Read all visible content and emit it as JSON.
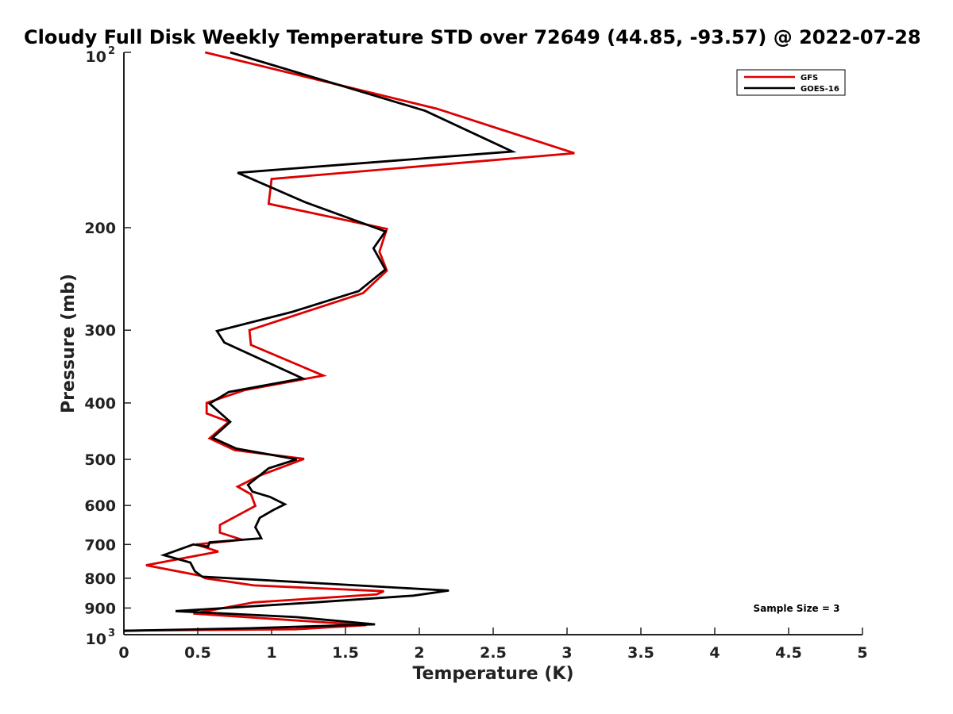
{
  "chart_data": {
    "type": "line",
    "title": "Cloudy Full Disk Weekly Temperature STD over 72649 (44.85, -93.57) @ 2022-07-28",
    "xlabel": "Temperature (K)",
    "ylabel": "Pressure (mb)",
    "xlim": [
      0,
      5
    ],
    "ylim": [
      100,
      1000
    ],
    "y_scale": "log",
    "y_reversed": true,
    "grid": false,
    "legend_position": "top-right",
    "annotation": "Sample Size = 3",
    "x_ticks": [
      {
        "value": 0,
        "label": "0"
      },
      {
        "value": 0.5,
        "label": "0.5"
      },
      {
        "value": 1,
        "label": "1"
      },
      {
        "value": 1.5,
        "label": "1.5"
      },
      {
        "value": 2,
        "label": "2"
      },
      {
        "value": 2.5,
        "label": "2.5"
      },
      {
        "value": 3,
        "label": "3"
      },
      {
        "value": 3.5,
        "label": "3.5"
      },
      {
        "value": 4,
        "label": "4"
      },
      {
        "value": 4.5,
        "label": "4.5"
      },
      {
        "value": 5,
        "label": "5"
      }
    ],
    "y_ticks": [
      {
        "value": 100,
        "label": "10",
        "exponent": "2"
      },
      {
        "value": 200,
        "label": "200"
      },
      {
        "value": 300,
        "label": "300"
      },
      {
        "value": 400,
        "label": "400"
      },
      {
        "value": 500,
        "label": "500"
      },
      {
        "value": 600,
        "label": "600"
      },
      {
        "value": 700,
        "label": "700"
      },
      {
        "value": 800,
        "label": "800"
      },
      {
        "value": 900,
        "label": "900"
      },
      {
        "value": 1000,
        "label": "10",
        "exponent": "3"
      }
    ],
    "series": [
      {
        "name": "GFS",
        "color": "#dd0000",
        "points": [
          [
            0.55,
            100
          ],
          [
            2.12,
            125
          ],
          [
            3.05,
            149
          ],
          [
            1.0,
            165
          ],
          [
            0.98,
            182
          ],
          [
            1.78,
            201
          ],
          [
            1.73,
            220
          ],
          [
            1.78,
            237
          ],
          [
            1.62,
            259
          ],
          [
            0.85,
            300
          ],
          [
            0.86,
            318
          ],
          [
            1.35,
            359
          ],
          [
            0.82,
            380
          ],
          [
            0.56,
            400
          ],
          [
            0.56,
            417
          ],
          [
            0.71,
            431
          ],
          [
            0.58,
            460
          ],
          [
            0.75,
            482
          ],
          [
            1.22,
            499
          ],
          [
            0.92,
            533
          ],
          [
            0.77,
            557
          ],
          [
            0.86,
            574
          ],
          [
            0.89,
            601
          ],
          [
            0.65,
            648
          ],
          [
            0.65,
            668
          ],
          [
            0.8,
            687
          ],
          [
            0.49,
            700
          ],
          [
            0.64,
            720
          ],
          [
            0.15,
            760
          ],
          [
            0.52,
            792
          ],
          [
            0.55,
            800
          ],
          [
            0.88,
            823
          ],
          [
            1.76,
            842
          ],
          [
            1.71,
            853
          ],
          [
            0.88,
            880
          ],
          [
            0.47,
            920
          ],
          [
            1.64,
            963
          ],
          [
            1.16,
            979
          ],
          [
            0.0,
            984
          ]
        ]
      },
      {
        "name": "GOES-16",
        "color": "#000000",
        "points": [
          [
            0.72,
            100
          ],
          [
            2.04,
            126
          ],
          [
            2.63,
            148
          ],
          [
            0.77,
            161
          ],
          [
            1.23,
            181
          ],
          [
            1.77,
            203
          ],
          [
            1.69,
            217
          ],
          [
            1.77,
            236
          ],
          [
            1.59,
            257
          ],
          [
            1.14,
            279
          ],
          [
            0.63,
            301
          ],
          [
            0.68,
            315
          ],
          [
            1.21,
            363
          ],
          [
            0.71,
            383
          ],
          [
            0.58,
            401
          ],
          [
            0.72,
            431
          ],
          [
            0.6,
            459
          ],
          [
            0.76,
            479
          ],
          [
            1.17,
            500
          ],
          [
            0.98,
            518
          ],
          [
            0.84,
            553
          ],
          [
            0.87,
            568
          ],
          [
            0.99,
            580
          ],
          [
            1.09,
            597
          ],
          [
            1.01,
            611
          ],
          [
            0.92,
            630
          ],
          [
            0.89,
            654
          ],
          [
            0.92,
            675
          ],
          [
            0.93,
            683
          ],
          [
            0.58,
            694
          ],
          [
            0.57,
            706
          ],
          [
            0.47,
            700
          ],
          [
            0.27,
            730
          ],
          [
            0.45,
            752
          ],
          [
            0.48,
            778
          ],
          [
            0.53,
            795
          ],
          [
            2.2,
            840
          ],
          [
            1.96,
            857
          ],
          [
            1.29,
            880
          ],
          [
            0.35,
            911
          ],
          [
            1.17,
            933
          ],
          [
            1.7,
            960
          ],
          [
            0.85,
            975
          ],
          [
            0.0,
            985
          ]
        ]
      }
    ]
  }
}
